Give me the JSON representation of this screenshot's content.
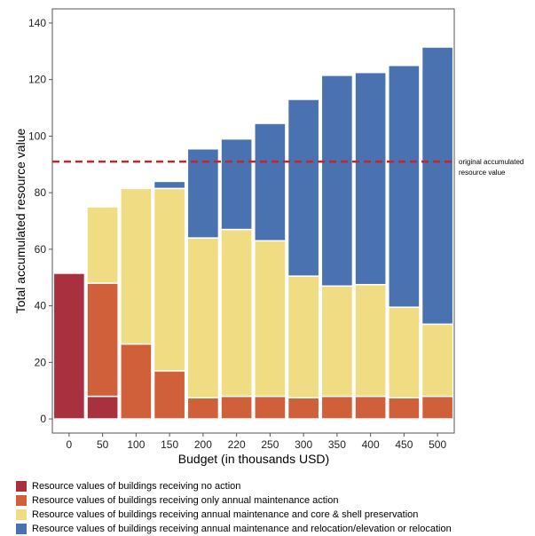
{
  "chart_data": {
    "type": "bar",
    "stacked": true,
    "categories": [
      "0",
      "50",
      "100",
      "150",
      "200",
      "220",
      "250",
      "300",
      "350",
      "400",
      "450",
      "500"
    ],
    "xlabel": "Budget (in thousands USD)",
    "ylabel": "Total accumulated resource value",
    "ylim": [
      -5,
      145
    ],
    "yticks": [
      0,
      20,
      40,
      60,
      80,
      100,
      120,
      140
    ],
    "series": [
      {
        "name": "Resource values of buildings receiving no action",
        "color": "#a8303f",
        "values": [
          51.5,
          8,
          0,
          0,
          0,
          0,
          0,
          0,
          0,
          0,
          0,
          0
        ]
      },
      {
        "name": "Resource values of buildings receiving only annual maintenance action",
        "color": "#d0603a",
        "values": [
          0,
          40,
          26.5,
          17,
          7.5,
          8,
          8,
          7.5,
          8,
          8,
          7.5,
          8
        ]
      },
      {
        "name": "Resource values of buildings receiving annual maintenance and core & shell preservation",
        "color": "#f0dc82",
        "values": [
          0,
          27,
          55,
          64.5,
          56.5,
          59,
          55,
          43,
          39,
          39.5,
          32,
          25.5
        ]
      },
      {
        "name": "Resource values of buildings receiving annual maintenance and relocation/elevation or relocation",
        "color": "#4a72b0",
        "values": [
          0,
          0,
          0,
          2.5,
          31.5,
          32,
          41.5,
          62.5,
          74.5,
          75,
          85.5,
          98
        ]
      }
    ],
    "reference_line": {
      "value": 91,
      "label_line1": "original accumulated",
      "label_line2": "resource value",
      "color": "#c0282d",
      "style": "dashed"
    },
    "grid": false,
    "legend_position": "bottom"
  }
}
